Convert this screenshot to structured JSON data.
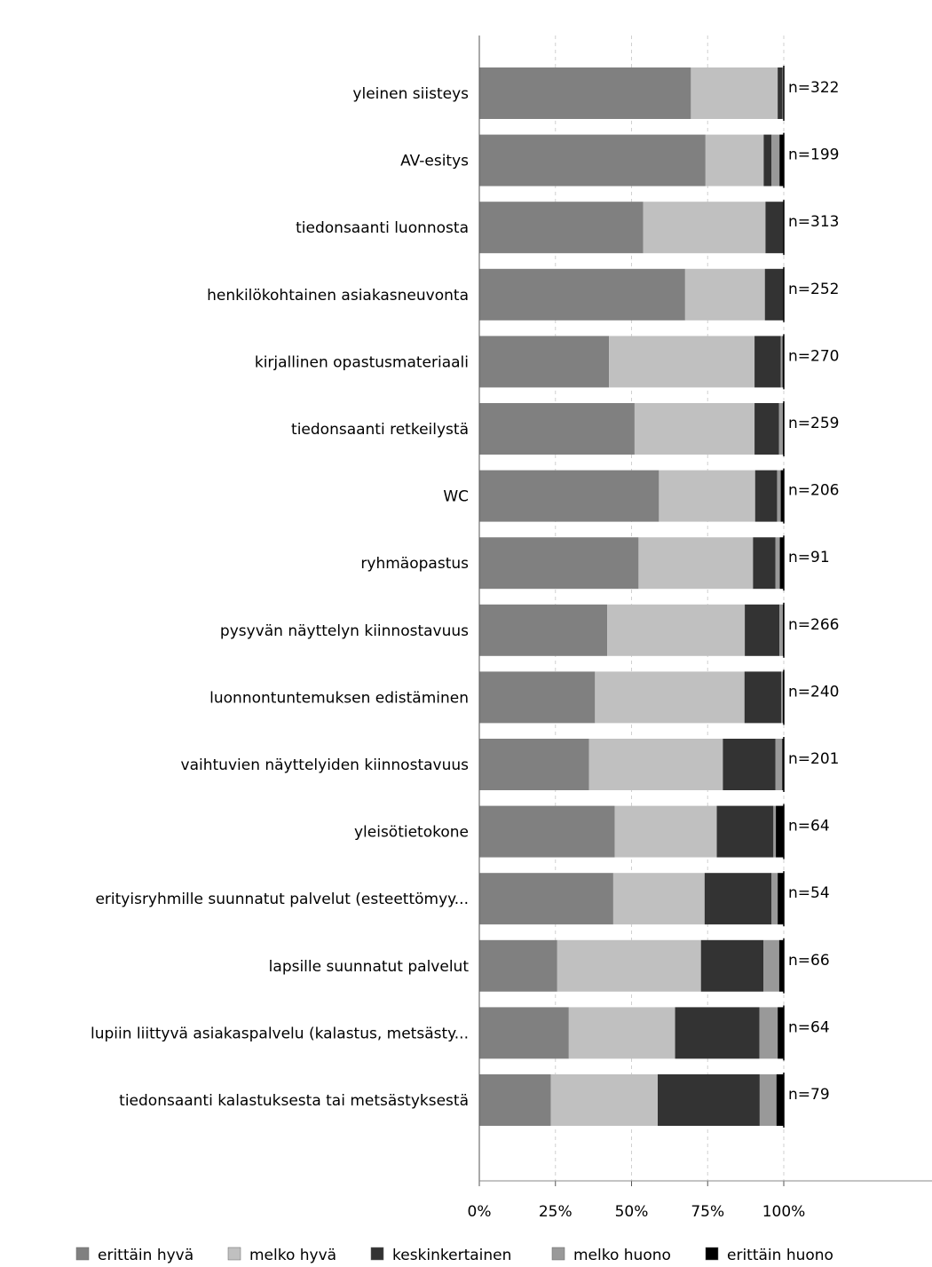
{
  "chart_data": {
    "type": "bar",
    "orientation": "horizontal",
    "stacked": true,
    "categories": [
      "yleinen siisteys",
      "AV-esitys",
      "tiedonsaanti luonnosta",
      "henkilökohtainen asiakasneuvonta",
      "kirjallinen opastusmateriaali",
      "tiedonsaanti retkeilystä",
      "WC",
      "ryhmäopastus",
      "pysyvän näyttelyn kiinnostavuus",
      "luonnontuntemuksen edistäminen",
      "vaihtuvien näyttelyiden kiinnostavuus",
      "yleisötietokone",
      "erityisryhmille suunnatut palvelut (esteettömyy...",
      "lapsille suunnatut palvelut",
      "lupiin liittyvä asiakaspalvelu (kalastus, metsästy...",
      "tiedonsaanti kalastuksesta tai metsästyksestä"
    ],
    "n_labels": [
      "n=322",
      "n=199",
      "n=313",
      "n=252",
      "n=270",
      "n=259",
      "n=206",
      "n=91",
      "n=266",
      "n=240",
      "n=201",
      "n=64",
      "n=54",
      "n=66",
      "n=64",
      "n=79"
    ],
    "series": [
      {
        "name": "erittäin hyvä",
        "color": "#808080",
        "values": [
          69.5,
          74.3,
          53.8,
          67.6,
          42.6,
          51.0,
          59.0,
          52.3,
          42.0,
          38.0,
          36.0,
          44.5,
          44.0,
          25.6,
          29.4,
          23.5
        ]
      },
      {
        "name": "melko hyvä",
        "color": "#c0c0c0",
        "values": [
          28.5,
          19.1,
          40.2,
          26.2,
          47.8,
          39.4,
          31.6,
          37.6,
          45.2,
          49.1,
          44.0,
          33.5,
          30.0,
          47.2,
          34.9,
          35.1
        ]
      },
      {
        "name": "keskinkertainen",
        "color": "#333333",
        "values": [
          1.6,
          2.6,
          6.0,
          6.2,
          8.6,
          8.0,
          7.2,
          7.4,
          11.4,
          12.1,
          17.3,
          18.6,
          22.0,
          20.5,
          27.7,
          33.5
        ]
      },
      {
        "name": "melko huono",
        "color": "#999999",
        "values": [
          0.3,
          2.6,
          0.0,
          0.0,
          0.6,
          1.3,
          1.2,
          1.4,
          1.1,
          0.5,
          2.2,
          0.8,
          2.0,
          5.2,
          6.0,
          5.5
        ]
      },
      {
        "name": "erittäin huono",
        "color": "#000000",
        "values": [
          0.1,
          1.4,
          0.0,
          0.0,
          0.4,
          0.3,
          1.0,
          1.3,
          0.3,
          0.3,
          0.5,
          2.6,
          2.0,
          1.5,
          2.0,
          2.4
        ]
      }
    ],
    "x_ticks": [
      "0%",
      "25%",
      "50%",
      "75%",
      "100%"
    ],
    "xlim": [
      0,
      100
    ],
    "grid": true,
    "legend_position": "bottom"
  }
}
